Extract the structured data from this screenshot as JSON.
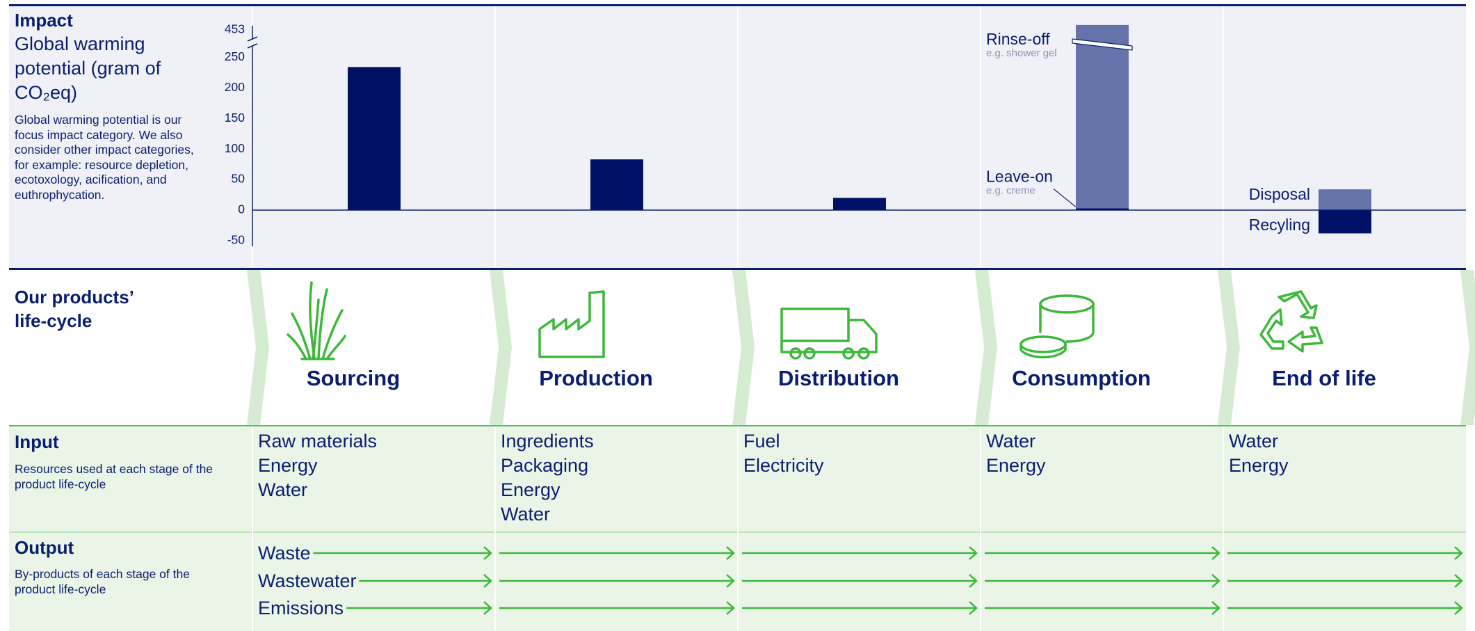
{
  "impact": {
    "heading": "Impact",
    "title": "Global warming potential (gram of CO₂eq)",
    "description": "Global warming potential is our focus impact category. We also consider other impact categories, for example: resource depletion, ecotoxology, acification, and euthrophycation."
  },
  "chart_data": {
    "type": "bar",
    "categories": [
      "Sourcing",
      "Production",
      "Distribution",
      "Consumption",
      "End of life"
    ],
    "values": [
      234,
      83,
      20,
      null,
      null
    ],
    "color": "#001166",
    "series": [
      {
        "name": "Leave-on",
        "note": "e.g. creme",
        "color": "#001166",
        "values": [
          null,
          null,
          null,
          3,
          null
        ]
      },
      {
        "name": "Rinse-off",
        "note": "e.g. shower gel",
        "color": "#6673aa",
        "values": [
          null,
          null,
          null,
          453,
          null
        ]
      },
      {
        "name": "Disposal",
        "color": "#6673aa",
        "values": [
          null,
          null,
          null,
          null,
          34
        ]
      },
      {
        "name": "Recyling",
        "color": "#001166",
        "values": [
          null,
          null,
          null,
          null,
          -38
        ]
      }
    ],
    "ylim": [
      -50,
      453
    ],
    "yticks": [
      -50,
      0,
      50,
      100,
      150,
      200,
      250,
      453
    ],
    "axis_break": [
      260,
      445
    ],
    "grid": false
  },
  "lifecycle": {
    "heading": "Our products’ life-cycle"
  },
  "input": {
    "heading": "Input",
    "description": "Resources used at each stage of the product life-cycle",
    "items": [
      [
        "Raw materials",
        "Energy",
        "Water"
      ],
      [
        "Ingredients",
        "Packaging",
        "Energy",
        "Water"
      ],
      [
        "Fuel",
        "Electricity"
      ],
      [
        "Water",
        "Energy"
      ],
      [
        "Water",
        "Energy"
      ]
    ]
  },
  "output": {
    "heading": "Output",
    "description": "By-products of each stage of the product life-cycle",
    "items": [
      "Waste",
      "Wastewater",
      "Emissions"
    ]
  }
}
